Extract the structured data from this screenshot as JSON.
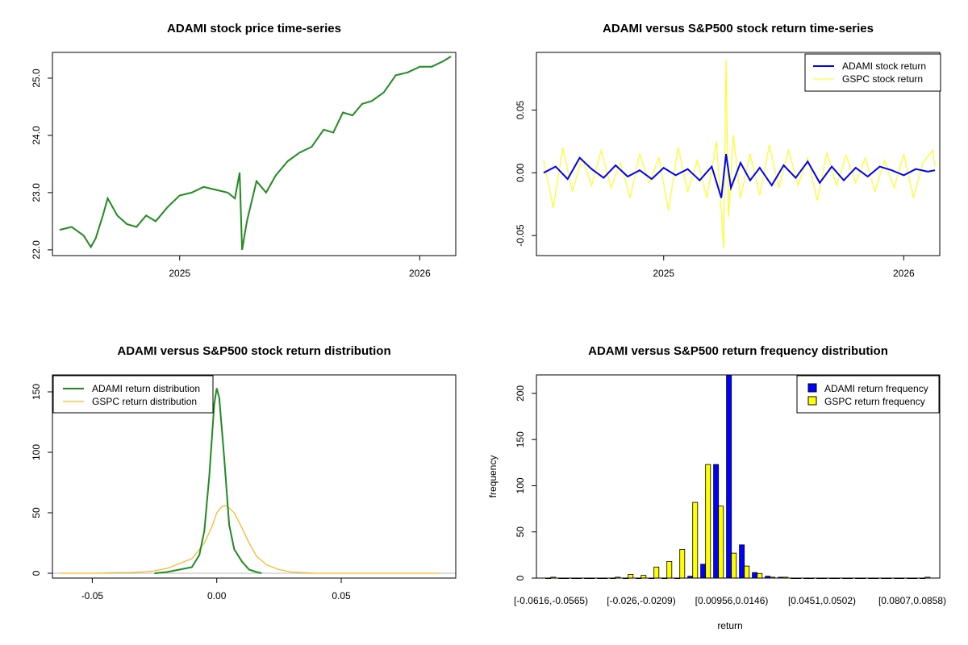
{
  "chart_data": [
    {
      "id": "price",
      "type": "line",
      "title": "ADAMI stock price time-series",
      "xlabel": "",
      "ylabel": "",
      "x_ticks": [
        "2025",
        "2026"
      ],
      "y_ticks": [
        "22.0",
        "23.0",
        "24.0",
        "25.0"
      ],
      "xlim": [
        2024.47,
        2026.15
      ],
      "ylim": [
        21.9,
        25.45
      ],
      "color": "#228b22",
      "series": [
        {
          "name": "ADAMI",
          "x": [
            2024.5,
            2024.55,
            2024.6,
            2024.63,
            2024.65,
            2024.68,
            2024.7,
            2024.74,
            2024.78,
            2024.82,
            2024.86,
            2024.9,
            2024.95,
            2025.0,
            2025.05,
            2025.1,
            2025.15,
            2025.2,
            2025.23,
            2025.25,
            2025.26,
            2025.28,
            2025.32,
            2025.36,
            2025.4,
            2025.45,
            2025.5,
            2025.55,
            2025.6,
            2025.64,
            2025.68,
            2025.72,
            2025.76,
            2025.8,
            2025.85,
            2025.9,
            2025.95,
            2026.0,
            2026.05,
            2026.1,
            2026.13
          ],
          "y": [
            22.35,
            22.4,
            22.25,
            22.05,
            22.2,
            22.6,
            22.9,
            22.6,
            22.45,
            22.4,
            22.6,
            22.5,
            22.75,
            22.95,
            23.0,
            23.1,
            23.05,
            23.0,
            22.9,
            23.35,
            22.0,
            22.5,
            23.2,
            23.0,
            23.3,
            23.55,
            23.7,
            23.8,
            24.1,
            24.05,
            24.4,
            24.35,
            24.55,
            24.6,
            24.75,
            25.05,
            25.1,
            25.2,
            25.2,
            25.3,
            25.38
          ]
        }
      ]
    },
    {
      "id": "returns",
      "type": "line",
      "title": "ADAMI versus S&P500 stock return time-series",
      "xlabel": "",
      "ylabel": "",
      "x_ticks": [
        "2025",
        "2026"
      ],
      "y_ticks": [
        "-0.05",
        "0.00",
        "0.05"
      ],
      "xlim": [
        2024.47,
        2026.15
      ],
      "ylim": [
        -0.066,
        0.096
      ],
      "legend": "top-right",
      "series": [
        {
          "name": "ADAMI stock return",
          "color": "#0000ff",
          "x": [
            2024.5,
            2024.55,
            2024.6,
            2024.65,
            2024.7,
            2024.75,
            2024.8,
            2024.85,
            2024.9,
            2024.95,
            2025.0,
            2025.05,
            2025.1,
            2025.15,
            2025.2,
            2025.24,
            2025.26,
            2025.28,
            2025.32,
            2025.36,
            2025.4,
            2025.45,
            2025.5,
            2025.55,
            2025.6,
            2025.65,
            2025.7,
            2025.75,
            2025.8,
            2025.85,
            2025.9,
            2025.95,
            2026.0,
            2026.05,
            2026.1,
            2026.13
          ],
          "y": [
            0.0,
            0.005,
            -0.005,
            0.012,
            0.003,
            -0.004,
            0.006,
            -0.003,
            0.002,
            -0.005,
            0.004,
            -0.002,
            0.003,
            -0.006,
            0.005,
            -0.02,
            0.015,
            -0.012,
            0.008,
            -0.006,
            0.004,
            -0.01,
            0.006,
            -0.004,
            0.009,
            -0.008,
            0.005,
            -0.006,
            0.004,
            -0.003,
            0.005,
            0.002,
            -0.002,
            0.003,
            0.001,
            0.002
          ]
        },
        {
          "name": "GSPC stock return",
          "color": "#ffff00",
          "x": [
            2024.5,
            2024.54,
            2024.58,
            2024.62,
            2024.66,
            2024.7,
            2024.74,
            2024.78,
            2024.82,
            2024.86,
            2024.9,
            2024.94,
            2024.98,
            2025.02,
            2025.06,
            2025.1,
            2025.14,
            2025.18,
            2025.22,
            2025.25,
            2025.26,
            2025.27,
            2025.29,
            2025.32,
            2025.36,
            2025.4,
            2025.44,
            2025.48,
            2025.52,
            2025.56,
            2025.6,
            2025.64,
            2025.68,
            2025.72,
            2025.76,
            2025.8,
            2025.84,
            2025.88,
            2025.92,
            2025.96,
            2026.0,
            2026.04,
            2026.08,
            2026.12,
            2026.13
          ],
          "y": [
            0.01,
            -0.028,
            0.02,
            -0.015,
            0.012,
            -0.01,
            0.018,
            -0.012,
            0.008,
            -0.02,
            0.015,
            -0.008,
            0.012,
            -0.03,
            0.02,
            -0.015,
            0.01,
            -0.02,
            0.025,
            -0.06,
            0.09,
            -0.035,
            0.03,
            -0.02,
            0.015,
            -0.018,
            0.022,
            -0.012,
            0.018,
            -0.01,
            0.012,
            -0.022,
            0.016,
            -0.01,
            0.014,
            -0.008,
            0.012,
            -0.015,
            0.01,
            -0.012,
            0.015,
            -0.02,
            0.008,
            0.018,
            0.005
          ]
        }
      ]
    },
    {
      "id": "density",
      "type": "line",
      "title": "ADAMI versus S&P500 stock return distribution",
      "xlabel": "",
      "ylabel": "",
      "x_ticks": [
        "-0.05",
        "0.00",
        "0.05"
      ],
      "y_ticks": [
        "0",
        "50",
        "100",
        "150"
      ],
      "xlim": [
        -0.066,
        0.096
      ],
      "ylim": [
        -4,
        164
      ],
      "legend": "top-left",
      "series": [
        {
          "name": "ADAMI return distribution",
          "color": "#228b22",
          "x": [
            -0.025,
            -0.02,
            -0.015,
            -0.01,
            -0.007,
            -0.005,
            -0.003,
            -0.001,
            0.0,
            0.001,
            0.003,
            0.005,
            0.007,
            0.01,
            0.013,
            0.016,
            0.018
          ],
          "y": [
            0,
            1,
            3,
            5,
            15,
            35,
            80,
            140,
            153,
            145,
            95,
            40,
            20,
            10,
            3,
            1,
            0
          ]
        },
        {
          "name": "GSPC return distribution",
          "color": "#ffa500",
          "x": [
            -0.063,
            -0.05,
            -0.04,
            -0.035,
            -0.03,
            -0.025,
            -0.02,
            -0.015,
            -0.01,
            -0.005,
            -0.002,
            0.0,
            0.002,
            0.004,
            0.007,
            0.01,
            0.013,
            0.016,
            0.02,
            0.025,
            0.03,
            0.035,
            0.04,
            0.05,
            0.06,
            0.07,
            0.08,
            0.09
          ],
          "y": [
            0,
            0,
            0.5,
            0.5,
            1,
            2,
            4,
            8,
            12,
            25,
            38,
            50,
            55,
            56,
            50,
            38,
            25,
            14,
            7,
            3,
            1,
            0.5,
            0,
            0,
            0,
            0,
            0,
            0
          ]
        }
      ]
    },
    {
      "id": "frequency",
      "type": "bar",
      "title": "ADAMI versus S&P500 return frequency distribution",
      "xlabel": "return",
      "ylabel": "frequency",
      "x_ticks": [
        "[-0.0616,-0.0565)",
        "[-0.026,-0.0209)",
        "[0.00956,0.0146)",
        "[0.0451,0.0502)",
        "[0.0807,0.0858)"
      ],
      "x_tick_bins": [
        0,
        7,
        14,
        21,
        28
      ],
      "y_ticks": [
        "0",
        "50",
        "100",
        "150",
        "200"
      ],
      "ylim": [
        0,
        220
      ],
      "legend": "top-right",
      "bins": 30,
      "series": [
        {
          "name": "ADAMI return frequency",
          "color": "#0000ff",
          "values": [
            0,
            0,
            0,
            0,
            0,
            0,
            0,
            0,
            0,
            0,
            0,
            2,
            15,
            123,
            220,
            36,
            6,
            2,
            1,
            0,
            0,
            0,
            0,
            0,
            0,
            0,
            0,
            0,
            0,
            0
          ]
        },
        {
          "name": "GSPC return frequency",
          "color": "#ffff00",
          "values": [
            1,
            0,
            0,
            0,
            0,
            1,
            4,
            3,
            12,
            18,
            31,
            82,
            123,
            78,
            27,
            13,
            5,
            1,
            1,
            0,
            0,
            0,
            0,
            0,
            0,
            0,
            0,
            0,
            0,
            1
          ]
        }
      ]
    }
  ]
}
